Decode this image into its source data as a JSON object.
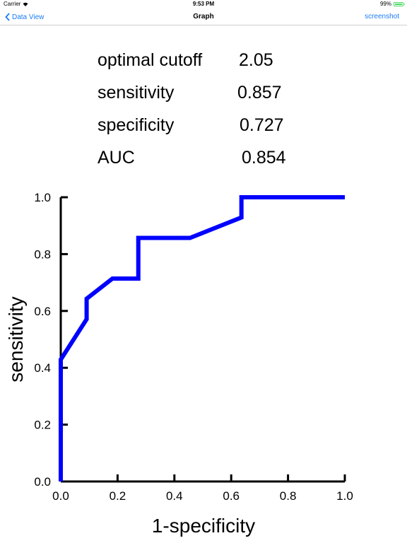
{
  "status_bar": {
    "carrier": "Carrier",
    "time": "9:53 PM",
    "battery": "99%"
  },
  "nav": {
    "back_label": "Data View",
    "title": "Graph",
    "right_label": "screenshot"
  },
  "stats": [
    {
      "label": "optimal cutoff",
      "value": "2.05"
    },
    {
      "label": "sensitivity",
      "value": "0.857"
    },
    {
      "label": "specificity",
      "value": "0.727"
    },
    {
      "label": "AUC",
      "value": "0.854"
    }
  ],
  "chart_data": {
    "type": "line",
    "xlabel": "1-specificity",
    "ylabel": "sensitivity",
    "xlim": [
      0,
      1
    ],
    "ylim": [
      0,
      1
    ],
    "x_ticks": [
      "0.0",
      "0.2",
      "0.4",
      "0.6",
      "0.8",
      "1.0"
    ],
    "y_ticks": [
      "0.0",
      "0.2",
      "0.4",
      "0.6",
      "0.8",
      "1.0"
    ],
    "grid": false,
    "series": [
      {
        "color": "#0000ff",
        "x": [
          0,
          0,
          0.091,
          0.091,
          0.182,
          0.273,
          0.273,
          0.455,
          0.636,
          0.636,
          1.0
        ],
        "y": [
          0,
          0.429,
          0.571,
          0.643,
          0.714,
          0.714,
          0.857,
          0.857,
          0.929,
          1.0,
          1.0
        ]
      }
    ]
  }
}
